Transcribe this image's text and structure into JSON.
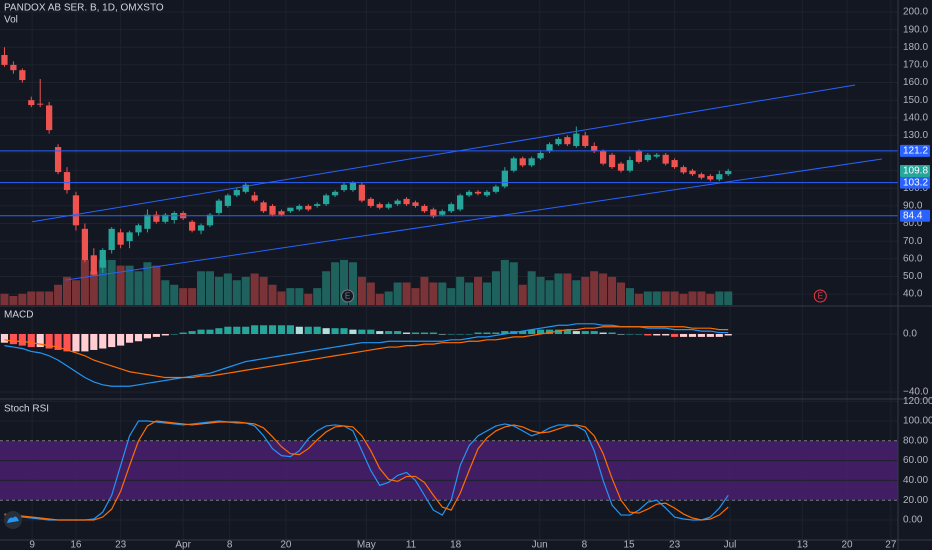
{
  "chart_data": [
    {
      "type": "candlestick",
      "title": "PANDOX AB SER. B, 1D, OMXSTO",
      "volume_label": "Vol",
      "xlim": [
        -0.5,
        100
      ],
      "xticks": [
        {
          "value": 3.1,
          "label": "9"
        },
        {
          "value": 8.0,
          "label": "16"
        },
        {
          "value": 13.0,
          "label": "23"
        },
        {
          "value": 20.0,
          "label": "Apr"
        },
        {
          "value": 25.2,
          "label": "8"
        },
        {
          "value": 31.5,
          "label": "20"
        },
        {
          "value": 40.5,
          "label": "May"
        },
        {
          "value": 45.5,
          "label": "11"
        },
        {
          "value": 50.5,
          "label": "18"
        },
        {
          "value": 59.9,
          "label": "Jun"
        },
        {
          "value": 64.9,
          "label": "8"
        },
        {
          "value": 69.9,
          "label": "15"
        },
        {
          "value": 75.0,
          "label": "23"
        },
        {
          "value": 81.2,
          "label": "Jul"
        },
        {
          "value": 89.3,
          "label": "13"
        },
        {
          "value": 94.3,
          "label": "20"
        },
        {
          "value": 99.2,
          "label": "27"
        }
      ],
      "ylim": [
        33.8,
        206.8
      ],
      "yticks": [
        {
          "value": 40,
          "label": "40.0"
        },
        {
          "value": 50,
          "label": "50.0"
        },
        {
          "value": 60,
          "label": "60.0"
        },
        {
          "value": 70,
          "label": "70.0"
        },
        {
          "value": 80,
          "label": "80.0"
        },
        {
          "value": 90,
          "label": "90.0"
        },
        {
          "value": 100,
          "label": "100.0"
        },
        {
          "value": 110,
          "label": "110.0"
        },
        {
          "value": 120,
          "label": "120.0"
        },
        {
          "value": 130,
          "label": "130.0"
        },
        {
          "value": 140,
          "label": "140.0"
        },
        {
          "value": 150,
          "label": "150.0"
        },
        {
          "value": 160,
          "label": "160.0"
        },
        {
          "value": 170,
          "label": "170.0"
        },
        {
          "value": 180,
          "label": "180.0"
        },
        {
          "value": 190,
          "label": "190.0"
        },
        {
          "value": 200,
          "label": "200.0"
        }
      ],
      "grid": true,
      "up_color": "#26a69a",
      "down_color": "#ef5350",
      "open": [
        175.6,
        170,
        167,
        150,
        148,
        147,
        123.4,
        109.2,
        96,
        77,
        62,
        55,
        65,
        75,
        70,
        75,
        77,
        85,
        81,
        82,
        86,
        81,
        76,
        79,
        86,
        90,
        96,
        98,
        96,
        92,
        90,
        87,
        87,
        88,
        90,
        90,
        91,
        96,
        99,
        99,
        102,
        94,
        91,
        89,
        91,
        94,
        92,
        90,
        88,
        85,
        87,
        88,
        96,
        98,
        96,
        98,
        101,
        110,
        117,
        113,
        117,
        121,
        125,
        129,
        124,
        130,
        124,
        121,
        119,
        114,
        110,
        121,
        116,
        118,
        119,
        116,
        112,
        110,
        108,
        107,
        105,
        108
      ],
      "high": [
        180,
        172,
        168,
        152,
        162,
        149,
        125,
        112,
        98,
        80,
        66,
        66,
        78,
        77,
        76,
        80,
        88,
        87,
        86,
        87,
        87,
        82,
        80,
        86,
        94,
        97,
        100,
        103,
        98,
        93,
        91,
        88,
        89,
        91,
        91,
        92,
        97,
        99,
        103,
        104,
        103,
        95,
        92,
        92,
        94,
        95,
        93,
        91,
        89,
        88,
        92,
        97,
        99,
        99,
        99,
        102,
        112,
        118,
        118,
        118,
        121,
        126,
        129,
        130,
        135,
        132,
        126,
        122,
        120,
        115,
        118,
        122,
        120,
        120,
        120,
        117,
        113,
        111,
        109,
        108,
        110,
        111
      ],
      "low": [
        169,
        165,
        160,
        146,
        146,
        131,
        108,
        97,
        76,
        58,
        50,
        52,
        63,
        66,
        66,
        73,
        75,
        80,
        80,
        80,
        82,
        75,
        74,
        78,
        85,
        89,
        95,
        97,
        92,
        86,
        84,
        84,
        86,
        87,
        87,
        89,
        90,
        95,
        98,
        98,
        92,
        89,
        88,
        88,
        90,
        90,
        89,
        86,
        83,
        84,
        86,
        87,
        95,
        96,
        95,
        97,
        100,
        109,
        112,
        112,
        116,
        120,
        124,
        124,
        123,
        123,
        120,
        113,
        111,
        109,
        109,
        114,
        115,
        117,
        113,
        111,
        108,
        107,
        105,
        104,
        104,
        107
      ],
      "close": [
        170,
        167,
        161.4,
        147.2,
        147.5,
        133,
        109.2,
        99,
        79,
        59.3,
        51,
        65,
        77,
        68,
        75,
        79,
        85,
        81,
        85,
        86,
        83,
        76,
        79,
        85,
        93,
        96,
        99,
        102,
        93,
        87,
        85,
        85,
        89,
        90,
        88,
        91,
        96,
        98,
        102,
        103,
        93,
        90,
        89,
        91,
        93,
        91,
        90,
        87,
        84,
        87,
        91,
        96,
        98,
        97,
        98,
        101,
        110,
        117,
        113,
        117,
        120,
        125,
        128,
        125,
        131,
        124,
        121,
        114,
        112,
        110,
        116,
        115,
        119,
        119,
        114,
        112,
        109,
        108,
        106,
        105,
        108,
        109.8
      ],
      "volume": {
        "up_color": "#1e615d",
        "down_color": "#7a3337",
        "values": [
          10,
          8,
          10,
          12,
          12,
          12,
          18,
          25,
          22,
          40,
          30,
          40,
          40,
          35,
          35,
          30,
          38,
          35,
          22,
          18,
          15,
          15,
          30,
          30,
          25,
          28,
          22,
          25,
          28,
          25,
          18,
          12,
          15,
          15,
          10,
          15,
          30,
          38,
          40,
          38,
          25,
          20,
          10,
          12,
          20,
          20,
          15,
          25,
          20,
          20,
          15,
          25,
          20,
          25,
          20,
          30,
          40,
          38,
          18,
          30,
          25,
          22,
          28,
          28,
          22,
          25,
          30,
          28,
          25,
          20,
          15,
          10,
          12,
          12,
          12,
          12,
          10,
          12,
          12,
          10,
          12,
          12
        ]
      },
      "line_color": "#2962ff",
      "horizontal_lines": [
        121.2,
        103.2,
        84.4
      ],
      "last_price": 109.8,
      "trend_lines": [
        {
          "x": [
            3.1,
            95.2
          ],
          "y": [
            81,
            158.6
          ]
        },
        {
          "x": [
            6.8,
            98.2
          ],
          "y": [
            47.9,
            116.6
          ]
        }
      ],
      "events": [
        {
          "x": 38.4,
          "label": "E",
          "color": "#787b86"
        },
        {
          "x": 91.3,
          "label": "E",
          "color": "#f23645"
        }
      ]
    },
    {
      "type": "macd",
      "title": "MACD",
      "ylim": [
        -44.1,
        18.6
      ],
      "yticks": [
        {
          "value": 0,
          "label": "0.0"
        },
        {
          "value": -40,
          "label": "−40.0"
        }
      ],
      "histogram": {
        "colors": {
          "pos_up": "#26a69a",
          "pos_down": "#b2dfdb",
          "neg_down": "#ff5252",
          "neg_up": "#ffcdd2"
        },
        "values": [
          -6,
          -7,
          -8,
          -9,
          -9,
          -10,
          -11,
          -12,
          -12,
          -12,
          -11,
          -10,
          -9,
          -8,
          -6,
          -5,
          -3,
          -2,
          -1,
          0,
          1,
          2,
          3,
          3,
          4,
          5,
          5,
          5,
          6,
          6,
          6,
          6,
          6,
          5,
          5,
          5,
          4,
          4,
          4,
          3,
          3,
          3,
          2,
          2,
          2,
          1,
          1,
          1,
          1,
          0,
          0,
          0,
          0,
          1,
          1,
          1,
          2,
          2,
          2,
          3,
          3,
          3,
          3,
          3,
          2,
          2,
          2,
          1,
          1,
          0,
          0,
          0,
          -1,
          -1,
          -1,
          -2,
          -2,
          -2,
          -2,
          -2,
          -2,
          -1
        ]
      },
      "series": [
        {
          "color": "#2196f3",
          "values": [
            -8,
            -9,
            -10,
            -12,
            -13,
            -15,
            -18,
            -22,
            -26,
            -30,
            -33,
            -35,
            -36,
            -36,
            -36,
            -35,
            -34,
            -33,
            -32,
            -31,
            -30,
            -29,
            -28,
            -27,
            -25,
            -23,
            -21,
            -19,
            -18,
            -17,
            -16,
            -15,
            -14,
            -13,
            -12,
            -11,
            -10,
            -9,
            -8,
            -7,
            -6,
            -6,
            -6,
            -5,
            -5,
            -5,
            -5,
            -5,
            -5,
            -5,
            -4,
            -4,
            -3,
            -2,
            -2,
            -1,
            0,
            1,
            2,
            3,
            4,
            5,
            6,
            6,
            7,
            7,
            7,
            6,
            6,
            5,
            5,
            5,
            4,
            4,
            4,
            3,
            3,
            3,
            2,
            2,
            1,
            1
          ]
        },
        {
          "color": "#ff6d00",
          "values": [
            -4,
            -5,
            -5,
            -6,
            -7,
            -8,
            -9,
            -11,
            -13,
            -15,
            -18,
            -20,
            -22,
            -24,
            -26,
            -27,
            -28,
            -29,
            -30,
            -30,
            -30,
            -30,
            -29,
            -29,
            -28,
            -27,
            -26,
            -25,
            -24,
            -23,
            -22,
            -21,
            -20,
            -19,
            -18,
            -17,
            -16,
            -15,
            -14,
            -13,
            -12,
            -11,
            -10,
            -9,
            -9,
            -8,
            -8,
            -7,
            -7,
            -6,
            -6,
            -6,
            -5,
            -5,
            -4,
            -4,
            -3,
            -2,
            -2,
            -1,
            0,
            1,
            2,
            3,
            3,
            4,
            4,
            5,
            5,
            5,
            5,
            5,
            5,
            5,
            5,
            5,
            5,
            4,
            4,
            4,
            3,
            3
          ]
        }
      ]
    },
    {
      "type": "stoch",
      "title": "Stoch RSI",
      "ylim": [
        -20.2,
        121.2
      ],
      "yticks": [
        {
          "value": 0,
          "label": "0.00"
        },
        {
          "value": 20,
          "label": "20.00"
        },
        {
          "value": 40,
          "label": "40.00"
        },
        {
          "value": 60,
          "label": "60.00"
        },
        {
          "value": 80,
          "label": "80.00"
        },
        {
          "value": 100,
          "label": "100.00"
        },
        {
          "value": 120,
          "label": "120.00"
        }
      ],
      "bands": [
        20,
        80
      ],
      "band_color": "#4a1f6f",
      "series": [
        {
          "color": "#2196f3",
          "values": [
            5,
            4,
            3,
            2,
            1,
            0,
            0,
            0,
            0,
            0,
            1,
            8,
            25,
            55,
            85,
            100,
            100,
            99,
            98,
            97,
            96,
            97,
            98,
            99,
            100,
            99,
            98,
            98,
            95,
            85,
            72,
            65,
            64,
            70,
            82,
            90,
            95,
            96,
            95,
            90,
            70,
            50,
            35,
            38,
            45,
            48,
            40,
            25,
            10,
            5,
            20,
            55,
            75,
            85,
            90,
            95,
            97,
            95,
            90,
            85,
            88,
            93,
            96,
            96,
            95,
            90,
            70,
            40,
            15,
            5,
            5,
            10,
            18,
            20,
            12,
            3,
            1,
            0,
            0,
            3,
            12,
            25
          ]
        },
        {
          "color": "#ff6d00",
          "values": [
            6,
            5,
            4,
            3,
            2,
            1,
            0,
            0,
            0,
            0,
            0,
            3,
            11,
            29,
            55,
            80,
            95,
            100,
            99,
            98,
            97,
            96,
            97,
            98,
            99,
            99,
            99,
            98,
            97,
            93,
            84,
            74,
            67,
            66,
            72,
            81,
            89,
            94,
            95,
            94,
            85,
            70,
            52,
            41,
            39,
            44,
            44,
            38,
            25,
            13,
            10,
            27,
            50,
            72,
            83,
            90,
            94,
            96,
            94,
            90,
            88,
            89,
            92,
            95,
            96,
            94,
            85,
            67,
            42,
            20,
            8,
            7,
            11,
            16,
            17,
            12,
            6,
            2,
            0,
            1,
            5,
            13
          ]
        }
      ]
    }
  ]
}
